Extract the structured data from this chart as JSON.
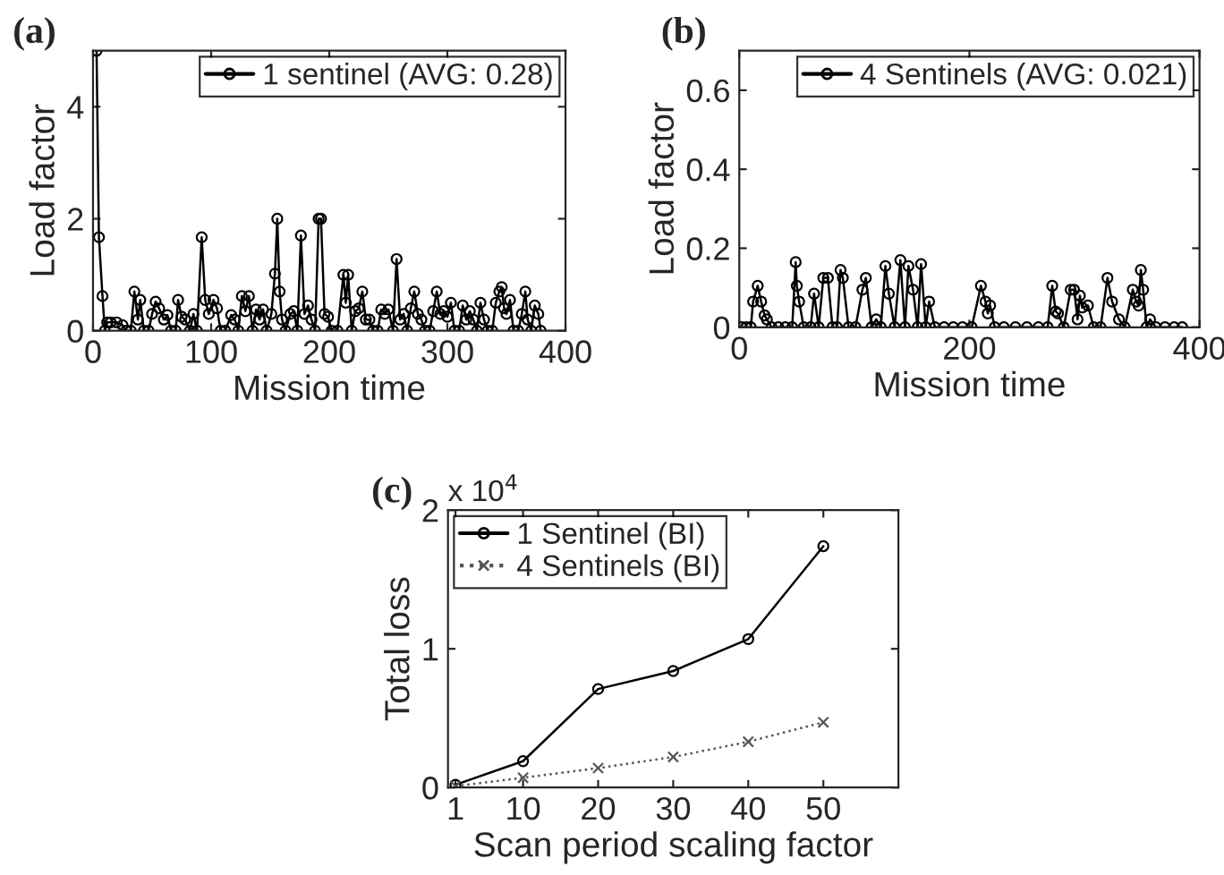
{
  "chart_data": [
    {
      "type": "line",
      "title": "(a)",
      "xlabel": "Mission time",
      "ylabel": "Load factor",
      "xlim": [
        0,
        400
      ],
      "ylim": [
        0,
        5
      ],
      "xticks": [
        0,
        100,
        200,
        300,
        400
      ],
      "yticks": [
        0,
        2,
        4
      ],
      "legend": "top right",
      "grid": false,
      "series": [
        {
          "name": "1 sentinel (AVG: 0.28)",
          "color": "#000000",
          "marker": "circle",
          "line_style": "solid",
          "x": [
            3,
            5,
            8,
            10,
            12,
            15,
            20,
            25,
            28,
            32,
            35,
            38,
            40,
            43,
            47,
            50,
            53,
            56,
            60,
            63,
            66,
            70,
            72,
            75,
            78,
            82,
            85,
            88,
            92,
            95,
            98,
            102,
            105,
            108,
            112,
            117,
            120,
            123,
            126,
            129,
            132,
            135,
            138,
            141,
            144,
            147,
            151,
            154,
            156,
            158,
            160,
            163,
            167,
            170,
            173,
            176,
            179,
            182,
            185,
            188,
            191,
            193,
            196,
            199,
            202,
            207,
            212,
            214,
            216,
            219,
            222,
            225,
            228,
            231,
            234,
            237,
            241,
            244,
            247,
            250,
            254,
            257,
            260,
            263,
            266,
            269,
            272,
            275,
            278,
            281,
            285,
            288,
            291,
            294,
            297,
            300,
            303,
            306,
            310,
            313,
            316,
            319,
            322,
            325,
            328,
            331,
            334,
            338,
            341,
            344,
            346,
            348,
            350,
            353,
            356,
            360,
            363,
            366,
            368,
            371,
            374,
            377,
            379
          ],
          "values": [
            5.0,
            1.67,
            0.62,
            0,
            0.15,
            0.15,
            0.15,
            0.1,
            0,
            0,
            0.7,
            0.2,
            0.55,
            0,
            0,
            0.3,
            0.52,
            0.4,
            0.2,
            0.28,
            0,
            0,
            0.55,
            0.25,
            0.2,
            0,
            0.3,
            0,
            1.67,
            0.55,
            0.3,
            0.55,
            0.4,
            0,
            0,
            0.28,
            0.2,
            0,
            0.62,
            0.35,
            0.62,
            0,
            0.38,
            0.2,
            0.38,
            0,
            0.3,
            1.02,
            2.0,
            0.7,
            0.2,
            0,
            0.3,
            0.35,
            0,
            1.7,
            0.3,
            0.45,
            0.2,
            0,
            2.0,
            2.0,
            0.3,
            0.25,
            0,
            0,
            1.0,
            0.5,
            1.0,
            0,
            0.35,
            0.4,
            0.7,
            0.2,
            0.2,
            0,
            0,
            0.38,
            0.3,
            0.38,
            0,
            1.28,
            0.2,
            0.3,
            0,
            0.4,
            0.7,
            0.3,
            0.2,
            0,
            0,
            0.35,
            0.7,
            0.3,
            0.35,
            0.25,
            0.5,
            0,
            0,
            0.45,
            0.2,
            0.35,
            0.2,
            0,
            0.5,
            0.2,
            0,
            0,
            0.5,
            0.7,
            0.78,
            0.4,
            0.3,
            0.55,
            0,
            0,
            0.3,
            0.7,
            0.2,
            0,
            0.45,
            0.3,
            0
          ]
        }
      ]
    },
    {
      "type": "line",
      "title": "(b)",
      "xlabel": "Mission time",
      "ylabel": "Load factor",
      "xlim": [
        0,
        400
      ],
      "ylim": [
        0,
        0.7
      ],
      "xticks": [
        0,
        200,
        400
      ],
      "yticks": [
        0,
        0.2,
        0.4,
        0.6
      ],
      "legend": "top right",
      "grid": false,
      "series": [
        {
          "name": "4 Sentinels (AVG: 0.021)",
          "color": "#000000",
          "marker": "circle",
          "line_style": "solid",
          "x": [
            2,
            6,
            10,
            12,
            16,
            19,
            22,
            24,
            28,
            34,
            40,
            46,
            49,
            50,
            52,
            56,
            62,
            65,
            69,
            73,
            77,
            81,
            85,
            88,
            90,
            95,
            101,
            107,
            110,
            115,
            119,
            123,
            127,
            130,
            135,
            140,
            144,
            147,
            151,
            155,
            158,
            162,
            165,
            170,
            178,
            186,
            194,
            202,
            210,
            214,
            216,
            218,
            222,
            230,
            240,
            250,
            260,
            268,
            272,
            275,
            277,
            282,
            288,
            291,
            294,
            296,
            298,
            303,
            308,
            314,
            320,
            324,
            330,
            335,
            342,
            345,
            347,
            349,
            351,
            354,
            357,
            362,
            370,
            378,
            385
          ],
          "values": [
            0,
            0,
            0,
            0.065,
            0.105,
            0.065,
            0.03,
            0.02,
            0,
            0,
            0,
            0,
            0.165,
            0.105,
            0.065,
            0,
            0,
            0.085,
            0,
            0.125,
            0.125,
            0,
            0,
            0.145,
            0.125,
            0,
            0,
            0.095,
            0.125,
            0,
            0.02,
            0,
            0.155,
            0.085,
            0,
            0.17,
            0,
            0.155,
            0.095,
            0,
            0.16,
            0,
            0.065,
            0,
            0,
            0,
            0,
            0,
            0.105,
            0.065,
            0.035,
            0.055,
            0,
            0,
            0,
            0,
            0,
            0,
            0.105,
            0.04,
            0.035,
            0,
            0.095,
            0.095,
            0.02,
            0.08,
            0.05,
            0.055,
            0,
            0,
            0.125,
            0.065,
            0.02,
            0,
            0.095,
            0.065,
            0.055,
            0.145,
            0.095,
            0,
            0.02,
            0,
            0,
            0,
            0
          ]
        }
      ]
    },
    {
      "type": "line",
      "title": "(c)",
      "xlabel": "Scan period scaling factor",
      "ylabel": "Total loss",
      "xlim": [
        0,
        60
      ],
      "ylim": [
        0,
        2
      ],
      "xticks": [
        1,
        10,
        20,
        30,
        40,
        50
      ],
      "yticks": [
        0,
        1,
        2
      ],
      "legend": "top left",
      "grid": false,
      "annotations": [
        "x 10$^{4}$"
      ],
      "x": [
        1,
        10,
        20,
        30,
        40,
        50
      ],
      "series": [
        {
          "name": "1 Sentinel (BI)",
          "color": "#000000",
          "marker": "circle",
          "line_style": "solid",
          "values": [
            0.02,
            0.19,
            0.71,
            0.84,
            1.07,
            1.74
          ]
        },
        {
          "name": "4 Sentinels (BI)",
          "color": "#555555",
          "marker": "cross",
          "line_style": "dotted",
          "values": [
            0.01,
            0.07,
            0.14,
            0.22,
            0.33,
            0.47
          ]
        }
      ]
    }
  ]
}
